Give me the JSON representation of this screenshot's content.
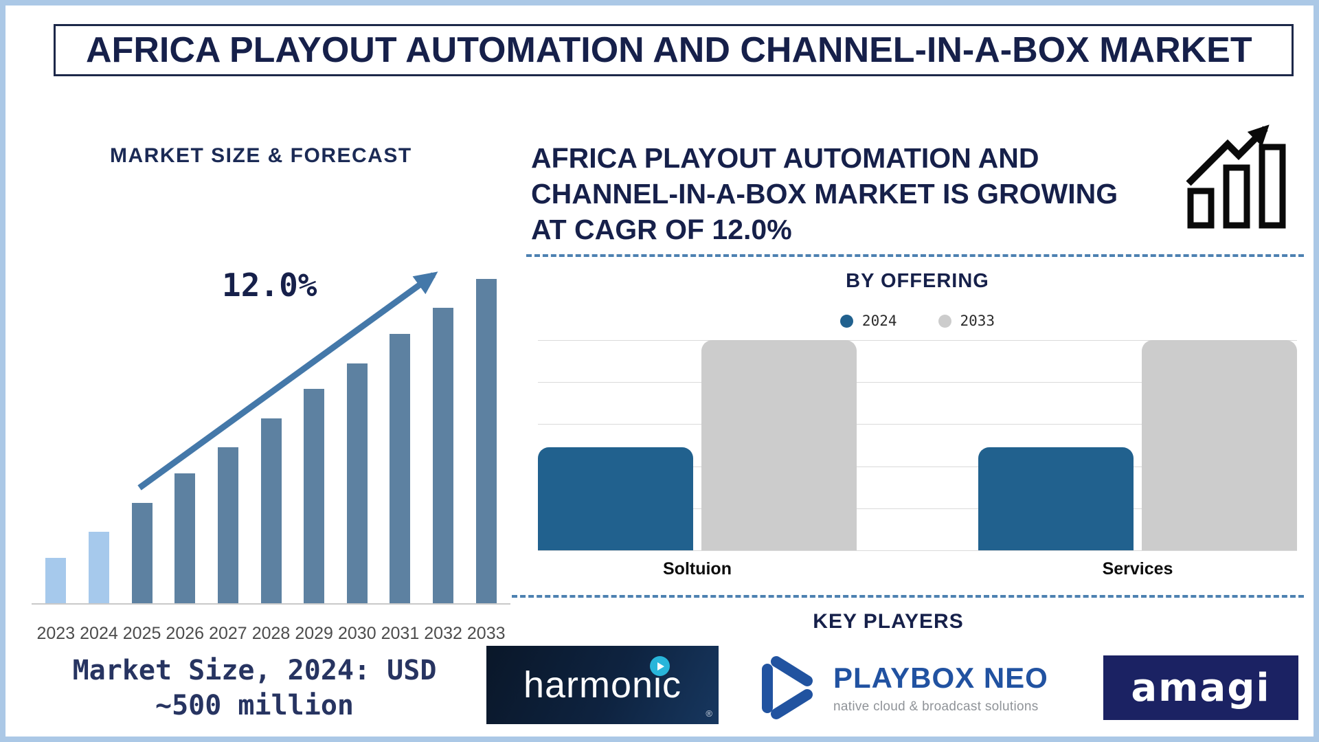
{
  "page": {
    "title": "AFRICA PLAYOUT AUTOMATION AND CHANNEL-IN-A-BOX MARKET",
    "colors": {
      "navy_text": "#16204a",
      "frame_blue": "#abc8e6",
      "arrow_blue": "#4478a9",
      "dashed_separator": "#4d81b1"
    }
  },
  "forecast": {
    "heading": "MARKET SIZE & FORECAST",
    "market_size_note": {
      "line1": "Market Size, 2024: USD",
      "line2": "~500 million"
    }
  },
  "growth": {
    "headline_lines": [
      "AFRICA PLAYOUT AUTOMATION AND",
      "CHANNEL-IN-A-BOX MARKET IS GROWING",
      "AT CAGR OF 12.0%"
    ]
  },
  "key_players": {
    "heading": "KEY PLAYERS",
    "logos": [
      {
        "name": "harmonic",
        "wordmark": "harmonic",
        "registered_mark": "®"
      },
      {
        "name": "playbox-neo",
        "wordmark": "PLAYBOX NEO",
        "tagline": "native cloud & broadcast solutions"
      },
      {
        "name": "amagi",
        "wordmark": "amagi"
      }
    ]
  },
  "chart_data": [
    {
      "id": "market-size-forecast",
      "type": "bar",
      "title": "MARKET SIZE & FORECAST",
      "categories": [
        "2023",
        "2024",
        "2025",
        "2026",
        "2027",
        "2028",
        "2029",
        "2030",
        "2031",
        "2032",
        "2033"
      ],
      "values_pct_of_max": [
        14,
        22,
        31,
        40,
        48,
        57,
        66,
        74,
        83,
        91,
        100
      ],
      "annotation": "12.0%",
      "note": "Market Size, 2024: USD ~500 million",
      "historical_years": [
        "2023",
        "2024"
      ],
      "colors": {
        "historical": "#a6c9ec",
        "forecast": "#5d81a1"
      },
      "xlabel": "",
      "ylabel": "",
      "axis_value_labels": false,
      "grid": false
    },
    {
      "id": "by-offering",
      "type": "bar",
      "title": "BY OFFERING",
      "categories": [
        "Soltuion",
        "Services"
      ],
      "series": [
        {
          "name": "2024",
          "color": "#21618e",
          "values_pct_of_max": [
            49,
            49
          ]
        },
        {
          "name": "2033",
          "color": "#cccccc",
          "values_pct_of_max": [
            100,
            100
          ]
        }
      ],
      "legend_position": "top",
      "axis_value_labels": false,
      "grid": true
    }
  ]
}
